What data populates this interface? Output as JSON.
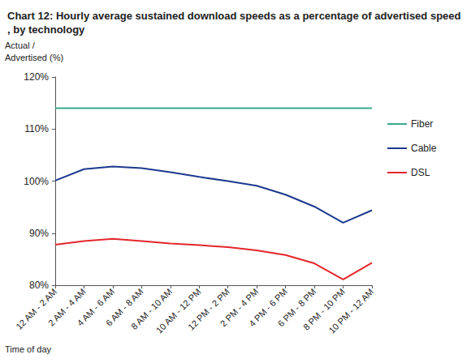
{
  "chart_data": {
    "type": "line",
    "title": "Chart 12: Hourly average sustained download speeds as a percentage of advertised speed, by technology",
    "x_label": "Time of day",
    "y_label": "Actual /\nAdvertised (%)",
    "categories": [
      "12 AM - 2 AM",
      "2 AM - 4 AM",
      "4 AM - 6 AM",
      "6 AM - 8 AM",
      "8 AM - 10 AM",
      "10 AM - 12 PM",
      "12 PM - 2 PM",
      "2 PM - 4 PM",
      "4 PM - 6 PM",
      "6 PM - 8 PM",
      "8 PM - 10 PM",
      "10 PM - 12 AM"
    ],
    "series": [
      {
        "name": "Fiber",
        "color": "#3aa98b",
        "values": [
          114,
          114,
          114,
          114,
          114,
          114,
          114,
          114,
          114,
          114,
          114,
          114
        ]
      },
      {
        "name": "Cable",
        "color": "#1c3a8e",
        "values": [
          100.1,
          102.3,
          102.8,
          102.5,
          101.7,
          100.8,
          100.0,
          99.1,
          97.4,
          95.1,
          92.0,
          94.4
        ]
      },
      {
        "name": "DSL",
        "color": "#e3262b",
        "values": [
          87.8,
          88.5,
          88.9,
          88.5,
          88.0,
          87.7,
          87.3,
          86.7,
          85.8,
          84.2,
          81.1,
          84.3
        ]
      }
    ],
    "ylim": [
      80,
      120
    ],
    "yticks": [
      {
        "value": 80,
        "label": "80%"
      },
      {
        "value": 90,
        "label": "90%"
      },
      {
        "value": 100,
        "label": "100%"
      },
      {
        "value": 110,
        "label": "110%"
      },
      {
        "value": 120,
        "label": "120%"
      }
    ],
    "grid": false,
    "legend": "right"
  }
}
